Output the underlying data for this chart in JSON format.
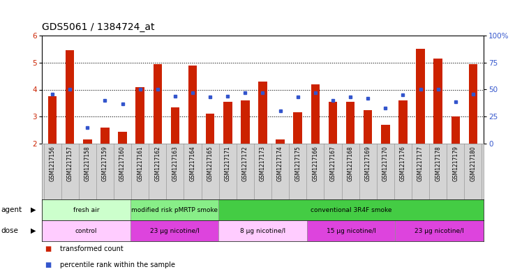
{
  "title": "GDS5061 / 1384724_at",
  "samples": [
    "GSM1217156",
    "GSM1217157",
    "GSM1217158",
    "GSM1217159",
    "GSM1217160",
    "GSM1217161",
    "GSM1217162",
    "GSM1217163",
    "GSM1217164",
    "GSM1217165",
    "GSM1217171",
    "GSM1217172",
    "GSM1217173",
    "GSM1217174",
    "GSM1217175",
    "GSM1217166",
    "GSM1217167",
    "GSM1217168",
    "GSM1217169",
    "GSM1217170",
    "GSM1217176",
    "GSM1217177",
    "GSM1217178",
    "GSM1217179",
    "GSM1217180"
  ],
  "bar_values": [
    3.75,
    5.45,
    2.15,
    2.6,
    2.45,
    4.1,
    4.95,
    3.35,
    4.9,
    3.1,
    3.55,
    3.6,
    4.3,
    2.15,
    3.15,
    4.2,
    3.55,
    3.55,
    3.25,
    2.7,
    3.6,
    5.5,
    5.15,
    3.0,
    4.95
  ],
  "blue_values": [
    46,
    50,
    15,
    40,
    37,
    50,
    50,
    44,
    47,
    43,
    44,
    47,
    47,
    30,
    43,
    47,
    40,
    43,
    42,
    33,
    45,
    50,
    50,
    39,
    46
  ],
  "bar_color": "#cc2200",
  "blue_color": "#3355cc",
  "ylim_left": [
    2,
    6
  ],
  "ylim_right": [
    0,
    100
  ],
  "yticks_left": [
    2,
    3,
    4,
    5,
    6
  ],
  "yticks_right": [
    0,
    25,
    50,
    75,
    100
  ],
  "ytick_labels_right": [
    "0",
    "25",
    "50",
    "75",
    "100%"
  ],
  "agent_groups": [
    {
      "label": "fresh air",
      "start": 0,
      "end": 5,
      "color": "#ccffcc"
    },
    {
      "label": "modified risk pMRTP smoke",
      "start": 5,
      "end": 10,
      "color": "#88ee88"
    },
    {
      "label": "conventional 3R4F smoke",
      "start": 10,
      "end": 25,
      "color": "#44cc44"
    }
  ],
  "dose_groups": [
    {
      "label": "control",
      "start": 0,
      "end": 5,
      "color": "#ffccff"
    },
    {
      "label": "23 μg nicotine/l",
      "start": 5,
      "end": 10,
      "color": "#dd44dd"
    },
    {
      "label": "8 μg nicotine/l",
      "start": 10,
      "end": 15,
      "color": "#ffccff"
    },
    {
      "label": "15 μg nicotine/l",
      "start": 15,
      "end": 20,
      "color": "#dd44dd"
    },
    {
      "label": "23 μg nicotine/l",
      "start": 20,
      "end": 25,
      "color": "#dd44dd"
    }
  ],
  "background_color": "#ffffff",
  "sample_bg": "#d4d4d4",
  "title_fontsize": 10,
  "bar_width": 0.5
}
